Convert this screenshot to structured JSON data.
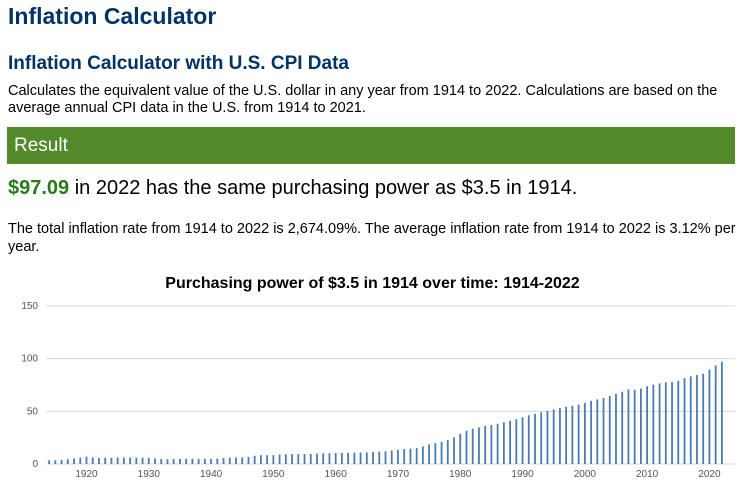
{
  "header": {
    "title": "Inflation Calculator",
    "subtitle": "Inflation Calculator with U.S. CPI Data",
    "description": "Calculates the equivalent value of the U.S. dollar in any year from 1914 to 2022. Calculations are based on the average annual CPI data in the U.S. from 1914 to 2021."
  },
  "result": {
    "heading": "Result",
    "amount": "$97.09",
    "statement": "in 2022 has the same purchasing power as $3.5 in 1914.",
    "summary": "The total inflation rate from 1914 to 2022 is 2,674.09%. The average inflation rate from 1914 to 2022 is 3.12% per year."
  },
  "colors": {
    "brand_title": "#003366",
    "result_bar": "#51892b",
    "amount": "#2a7a1a",
    "bars": "#4a7bb0"
  },
  "chart_data": {
    "type": "bar",
    "title": "Purchasing power of $3.5 in 1914 over time: 1914-2022",
    "xlabel": "",
    "ylabel": "",
    "ylim": [
      0,
      150
    ],
    "yticks": [
      0,
      50,
      100,
      150
    ],
    "xticks": [
      1920,
      1930,
      1940,
      1950,
      1960,
      1970,
      1980,
      1990,
      2000,
      2010,
      2020
    ],
    "grid": true,
    "x_start": 1914,
    "values": [
      3.5,
      3.54,
      3.81,
      4.48,
      5.25,
      6.02,
      6.96,
      6.23,
      5.85,
      5.95,
      5.97,
      6.12,
      6.18,
      6.07,
      5.98,
      5.98,
      5.82,
      5.31,
      4.77,
      4.52,
      4.68,
      4.79,
      4.84,
      5.02,
      4.92,
      4.86,
      4.89,
      5.14,
      5.69,
      6.04,
      6.14,
      6.28,
      6.81,
      7.79,
      8.39,
      8.31,
      8.41,
      9.08,
      9.26,
      9.33,
      9.4,
      9.37,
      9.5,
      9.83,
      10.1,
      10.17,
      10.34,
      10.45,
      10.56,
      10.71,
      10.84,
      11.02,
      11.33,
      11.66,
      12.15,
      12.8,
      13.55,
      14.15,
      14.6,
      15.08,
      16.75,
      18.6,
      19.79,
      21.07,
      22.68,
      25.25,
      28.66,
      31.63,
      33.57,
      34.65,
      36.14,
      37.04,
      38.18,
      39.56,
      41.05,
      42.55,
      44.35,
      46.23,
      47.64,
      49.04,
      50.31,
      51.73,
      53.07,
      54.36,
      55.29,
      56.45,
      57.99,
      59.95,
      61.3,
      62.68,
      64.65,
      66.68,
      68.62,
      70.67,
      70.42,
      71.56,
      73.82,
      75.34,
      76.5,
      77.64,
      77.76,
      79.07,
      81.45,
      83.18,
      84.41,
      85.62,
      89.61,
      93.5,
      97.09
    ]
  }
}
